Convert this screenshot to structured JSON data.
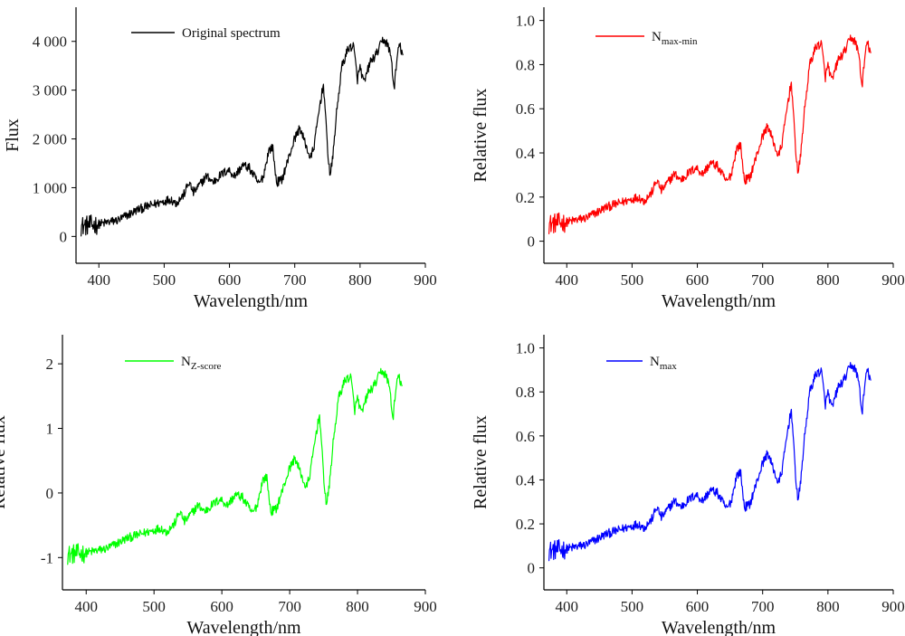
{
  "chart_data": [
    {
      "type": "line",
      "series": [
        {
          "name": "Original spectrum",
          "color": "#000000"
        }
      ],
      "legend": {
        "main": "Original spectrum",
        "sub": ""
      },
      "xlabel": "Wavelength/nm",
      "ylabel": "Flux",
      "xlim": [
        365,
        900
      ],
      "ylim": [
        -550,
        4700
      ],
      "xticks": [
        400,
        500,
        600,
        700,
        800,
        900
      ],
      "xtick_labels": [
        "400",
        "500",
        "600",
        "700",
        "800",
        "900"
      ],
      "yticks": [
        0,
        1000,
        2000,
        3000,
        4000
      ],
      "ytick_labels": [
        "0",
        "1 000",
        "2 000",
        "3 000",
        "4 000"
      ],
      "data_range": [
        -50,
        4250
      ],
      "noise": 0.022,
      "grid": false,
      "legend_position": "top-center"
    },
    {
      "type": "line",
      "series": [
        {
          "name": "N max-min",
          "color": "#ff0000"
        }
      ],
      "legend": {
        "main": "N",
        "sub": "max-min"
      },
      "xlabel": "Wavelength/nm",
      "ylabel": "Relative flux",
      "xlim": [
        365,
        900
      ],
      "ylim": [
        -0.1,
        1.06
      ],
      "xticks": [
        400,
        500,
        600,
        700,
        800,
        900
      ],
      "xtick_labels": [
        "400",
        "500",
        "600",
        "700",
        "800",
        "900"
      ],
      "yticks": [
        0,
        0.2,
        0.4,
        0.6,
        0.8,
        1.0
      ],
      "ytick_labels": [
        "0",
        "0.2",
        "0.4",
        "0.6",
        "0.8",
        "1.0"
      ],
      "data_range": [
        0.02,
        0.97
      ],
      "noise": 0.022,
      "grid": false,
      "legend_position": "top-center"
    },
    {
      "type": "line",
      "series": [
        {
          "name": "N Z-score",
          "color": "#00ff00"
        }
      ],
      "legend": {
        "main": "N",
        "sub": "Z-score"
      },
      "xlabel": "Wavelength/nm",
      "ylabel": "Relative flux",
      "xlim": [
        365,
        900
      ],
      "ylim": [
        -1.5,
        2.45
      ],
      "xticks": [
        400,
        500,
        600,
        700,
        800,
        900
      ],
      "xtick_labels": [
        "400",
        "500",
        "600",
        "700",
        "800",
        "900"
      ],
      "yticks": [
        -1,
        0,
        1,
        2
      ],
      "ytick_labels": [
        "-1",
        "0",
        "1",
        "2"
      ],
      "data_range": [
        -1.15,
        2.05
      ],
      "noise": 0.022,
      "grid": false,
      "legend_position": "top-center"
    },
    {
      "type": "line",
      "series": [
        {
          "name": "N max",
          "color": "#0000ff"
        }
      ],
      "legend": {
        "main": "N",
        "sub": "max"
      },
      "xlabel": "Wavelength/nm",
      "ylabel": "Relative flux",
      "xlim": [
        365,
        900
      ],
      "ylim": [
        -0.1,
        1.06
      ],
      "xticks": [
        400,
        500,
        600,
        700,
        800,
        900
      ],
      "xtick_labels": [
        "400",
        "500",
        "600",
        "700",
        "800",
        "900"
      ],
      "yticks": [
        0,
        0.2,
        0.4,
        0.6,
        0.8,
        1.0
      ],
      "ytick_labels": [
        "0",
        "0.2",
        "0.4",
        "0.6",
        "0.8",
        "1.0"
      ],
      "data_range": [
        0.02,
        0.97
      ],
      "noise": 0.022,
      "grid": false,
      "legend_position": "top-center"
    }
  ]
}
